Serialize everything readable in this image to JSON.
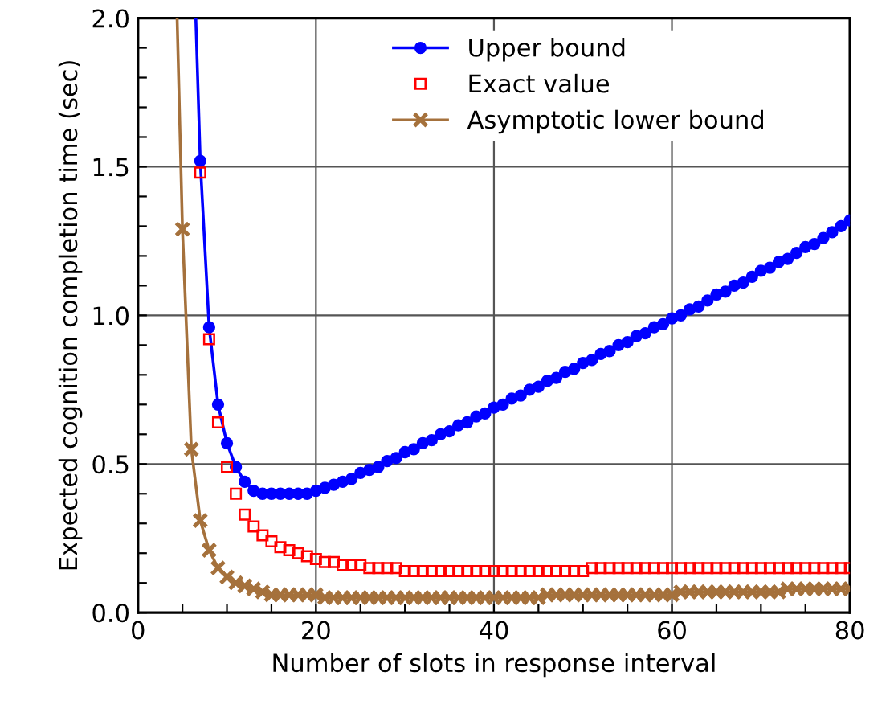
{
  "chart_data": {
    "type": "line",
    "xlabel": "Number of slots in response interval",
    "ylabel": "Expected cognition completion time (sec)",
    "xlim": [
      0,
      80
    ],
    "ylim": [
      0,
      2.0
    ],
    "xticks": [
      0,
      {
        "value": 5,
        "label": null
      },
      {
        "value": 10,
        "label": null
      },
      {
        "value": 15,
        "label": null
      },
      20,
      {
        "value": 25,
        "label": null
      },
      {
        "value": 30,
        "label": null
      },
      {
        "value": 35,
        "label": null
      },
      40,
      {
        "value": 45,
        "label": null
      },
      {
        "value": 50,
        "label": null
      },
      {
        "value": 55,
        "label": null
      },
      60,
      {
        "value": 65,
        "label": null
      },
      {
        "value": 70,
        "label": null
      },
      {
        "value": 75,
        "label": null
      },
      80
    ],
    "yticks": [
      {
        "value": 0,
        "label": "0.0"
      },
      {
        "value": 0.1,
        "label": null
      },
      {
        "value": 0.2,
        "label": null
      },
      {
        "value": 0.3,
        "label": null
      },
      {
        "value": 0.4,
        "label": null
      },
      0.5,
      {
        "value": 0.6,
        "label": null
      },
      {
        "value": 0.7,
        "label": null
      },
      {
        "value": 0.8,
        "label": null
      },
      {
        "value": 0.9,
        "label": null
      },
      {
        "value": 1.0,
        "label": "1.0"
      },
      {
        "value": 1.1,
        "label": null
      },
      {
        "value": 1.2,
        "label": null
      },
      {
        "value": 1.3,
        "label": null
      },
      {
        "value": 1.4,
        "label": null
      },
      1.5,
      {
        "value": 1.6,
        "label": null
      },
      {
        "value": 1.7,
        "label": null
      },
      {
        "value": 1.8,
        "label": null
      },
      {
        "value": 1.9,
        "label": null
      },
      {
        "value": 2.0,
        "label": "2.0"
      }
    ],
    "grid": true,
    "legend": "top",
    "series": [
      {
        "name": "Upper bound",
        "marker": "circle",
        "color": "#0000ff",
        "x": [
          6.5,
          7,
          8,
          9,
          10,
          11,
          12,
          13,
          14,
          15,
          16,
          17,
          18,
          19,
          20,
          21,
          22,
          23,
          24,
          25,
          26,
          27,
          28,
          29,
          30,
          31,
          32,
          33,
          34,
          35,
          36,
          37,
          38,
          39,
          40,
          41,
          42,
          43,
          44,
          45,
          46,
          47,
          48,
          49,
          50,
          51,
          52,
          53,
          54,
          55,
          56,
          57,
          58,
          59,
          60,
          61,
          62,
          63,
          64,
          65,
          66,
          67,
          68,
          69,
          70,
          71,
          72,
          73,
          74,
          75,
          76,
          77,
          78,
          79,
          80
        ],
        "values": [
          2.0,
          1.52,
          0.96,
          0.7,
          0.57,
          0.49,
          0.44,
          0.41,
          0.4,
          0.4,
          0.4,
          0.4,
          0.4,
          0.4,
          0.41,
          0.42,
          0.43,
          0.44,
          0.45,
          0.47,
          0.48,
          0.49,
          0.51,
          0.52,
          0.54,
          0.55,
          0.57,
          0.58,
          0.6,
          0.61,
          0.63,
          0.64,
          0.66,
          0.67,
          0.69,
          0.7,
          0.72,
          0.73,
          0.75,
          0.76,
          0.78,
          0.79,
          0.81,
          0.82,
          0.84,
          0.85,
          0.87,
          0.88,
          0.9,
          0.91,
          0.93,
          0.94,
          0.96,
          0.97,
          0.99,
          1.0,
          1.02,
          1.03,
          1.05,
          1.07,
          1.08,
          1.1,
          1.11,
          1.13,
          1.15,
          1.16,
          1.18,
          1.19,
          1.21,
          1.23,
          1.24,
          1.26,
          1.28,
          1.3,
          1.32
        ]
      },
      {
        "name": "Exact value",
        "type": "scatter",
        "marker": "square",
        "color": "#ff0000",
        "x": [
          7,
          8,
          9,
          10,
          11,
          12,
          13,
          14,
          15,
          16,
          17,
          18,
          19,
          20,
          21,
          22,
          23,
          24,
          25,
          26,
          27,
          28,
          29,
          30,
          31,
          32,
          33,
          34,
          35,
          36,
          37,
          38,
          39,
          40,
          41,
          42,
          43,
          44,
          45,
          46,
          47,
          48,
          49,
          50,
          51,
          52,
          53,
          54,
          55,
          56,
          57,
          58,
          59,
          60,
          61,
          62,
          63,
          64,
          65,
          66,
          67,
          68,
          69,
          70,
          71,
          72,
          73,
          74,
          75,
          76,
          77,
          78,
          79,
          80
        ],
        "values": [
          1.48,
          0.92,
          0.64,
          0.49,
          0.4,
          0.33,
          0.29,
          0.26,
          0.24,
          0.22,
          0.21,
          0.2,
          0.19,
          0.18,
          0.17,
          0.17,
          0.16,
          0.16,
          0.16,
          0.15,
          0.15,
          0.15,
          0.15,
          0.14,
          0.14,
          0.14,
          0.14,
          0.14,
          0.14,
          0.14,
          0.14,
          0.14,
          0.14,
          0.14,
          0.14,
          0.14,
          0.14,
          0.14,
          0.14,
          0.14,
          0.14,
          0.14,
          0.14,
          0.14,
          0.15,
          0.15,
          0.15,
          0.15,
          0.15,
          0.15,
          0.15,
          0.15,
          0.15,
          0.15,
          0.15,
          0.15,
          0.15,
          0.15,
          0.15,
          0.15,
          0.15,
          0.15,
          0.15,
          0.15,
          0.15,
          0.15,
          0.15,
          0.15,
          0.15,
          0.15,
          0.15,
          0.15,
          0.15,
          0.15
        ]
      },
      {
        "name": "Asymptotic lower bound",
        "marker": "cross",
        "color": "#a5713c",
        "x": [
          4.4,
          5,
          6,
          7,
          8,
          9,
          10,
          11,
          12,
          13,
          14,
          15,
          16,
          17,
          18,
          19,
          20,
          21,
          22,
          23,
          24,
          25,
          26,
          27,
          28,
          29,
          30,
          31,
          32,
          33,
          34,
          35,
          36,
          37,
          38,
          39,
          40,
          41,
          42,
          43,
          44,
          45,
          46,
          47,
          48,
          49,
          50,
          51,
          52,
          53,
          54,
          55,
          56,
          57,
          58,
          59,
          60,
          61,
          62,
          63,
          64,
          65,
          66,
          67,
          68,
          69,
          70,
          71,
          72,
          73,
          74,
          75,
          76,
          77,
          78,
          79,
          80
        ],
        "values": [
          2.0,
          1.29,
          0.55,
          0.31,
          0.21,
          0.15,
          0.12,
          0.1,
          0.09,
          0.08,
          0.07,
          0.06,
          0.06,
          0.06,
          0.06,
          0.06,
          0.06,
          0.05,
          0.05,
          0.05,
          0.05,
          0.05,
          0.05,
          0.05,
          0.05,
          0.05,
          0.05,
          0.05,
          0.05,
          0.05,
          0.05,
          0.05,
          0.05,
          0.05,
          0.05,
          0.05,
          0.05,
          0.05,
          0.05,
          0.05,
          0.05,
          0.05,
          0.06,
          0.06,
          0.06,
          0.06,
          0.06,
          0.06,
          0.06,
          0.06,
          0.06,
          0.06,
          0.06,
          0.06,
          0.06,
          0.06,
          0.06,
          0.07,
          0.07,
          0.07,
          0.07,
          0.07,
          0.07,
          0.07,
          0.07,
          0.07,
          0.07,
          0.07,
          0.07,
          0.08,
          0.08,
          0.08,
          0.08,
          0.08,
          0.08,
          0.08,
          0.08
        ]
      }
    ]
  }
}
